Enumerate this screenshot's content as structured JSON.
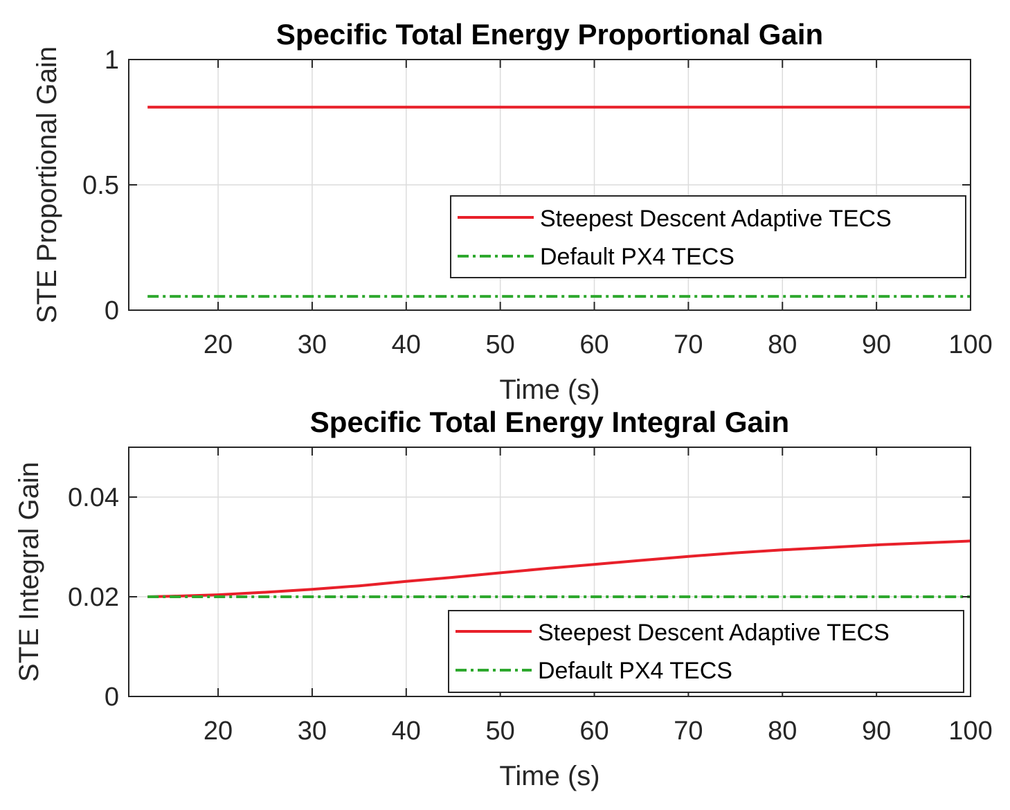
{
  "chart_data": [
    {
      "type": "line",
      "title": "Specific Total Energy Proportional Gain",
      "xlabel": "Time (s)",
      "ylabel": "STE Proportional Gain",
      "xlim": [
        10.5,
        100
      ],
      "ylim": [
        0,
        1
      ],
      "xticks": [
        20,
        30,
        40,
        50,
        60,
        70,
        80,
        90,
        100
      ],
      "xtick_labels": [
        "20",
        "30",
        "40",
        "50",
        "60",
        "70",
        "80",
        "90",
        "100"
      ],
      "yticks": [
        0,
        0.5,
        1
      ],
      "ytick_labels": [
        "0",
        "0.5",
        "1"
      ],
      "grid": true,
      "legend_position": "lower-right",
      "series": [
        {
          "name": "Steepest Descent Adaptive TECS",
          "color": "#e8202a",
          "style": "solid",
          "x": [
            12.5,
            100
          ],
          "y": [
            0.81,
            0.81
          ]
        },
        {
          "name": "Default PX4 TECS",
          "color": "#2ea82e",
          "style": "dashdot",
          "x": [
            12.5,
            100
          ],
          "y": [
            0.055,
            0.055
          ]
        }
      ]
    },
    {
      "type": "line",
      "title": "Specific Total Energy Integral Gain",
      "xlabel": "Time (s)",
      "ylabel": "STE Integral Gain",
      "xlim": [
        10.5,
        100
      ],
      "ylim": [
        0,
        0.05
      ],
      "xticks": [
        20,
        30,
        40,
        50,
        60,
        70,
        80,
        90,
        100
      ],
      "xtick_labels": [
        "20",
        "30",
        "40",
        "50",
        "60",
        "70",
        "80",
        "90",
        "100"
      ],
      "yticks": [
        0,
        0.02,
        0.04
      ],
      "ytick_labels": [
        "0",
        "0.02",
        "0.04"
      ],
      "grid": true,
      "legend_position": "lower-right",
      "series": [
        {
          "name": "Steepest Descent Adaptive TECS",
          "color": "#e8202a",
          "style": "solid",
          "x": [
            12.5,
            15,
            20,
            25,
            30,
            35,
            40,
            45,
            50,
            55,
            60,
            65,
            70,
            75,
            80,
            85,
            90,
            95,
            100
          ],
          "y": [
            0.02,
            0.0201,
            0.0204,
            0.0209,
            0.0215,
            0.0222,
            0.0231,
            0.0239,
            0.0248,
            0.0257,
            0.0265,
            0.0273,
            0.0281,
            0.0288,
            0.0294,
            0.0299,
            0.0304,
            0.0308,
            0.0312
          ]
        },
        {
          "name": "Default PX4 TECS",
          "color": "#2ea82e",
          "style": "dashdot",
          "x": [
            12.5,
            100
          ],
          "y": [
            0.02,
            0.02
          ]
        }
      ]
    }
  ]
}
